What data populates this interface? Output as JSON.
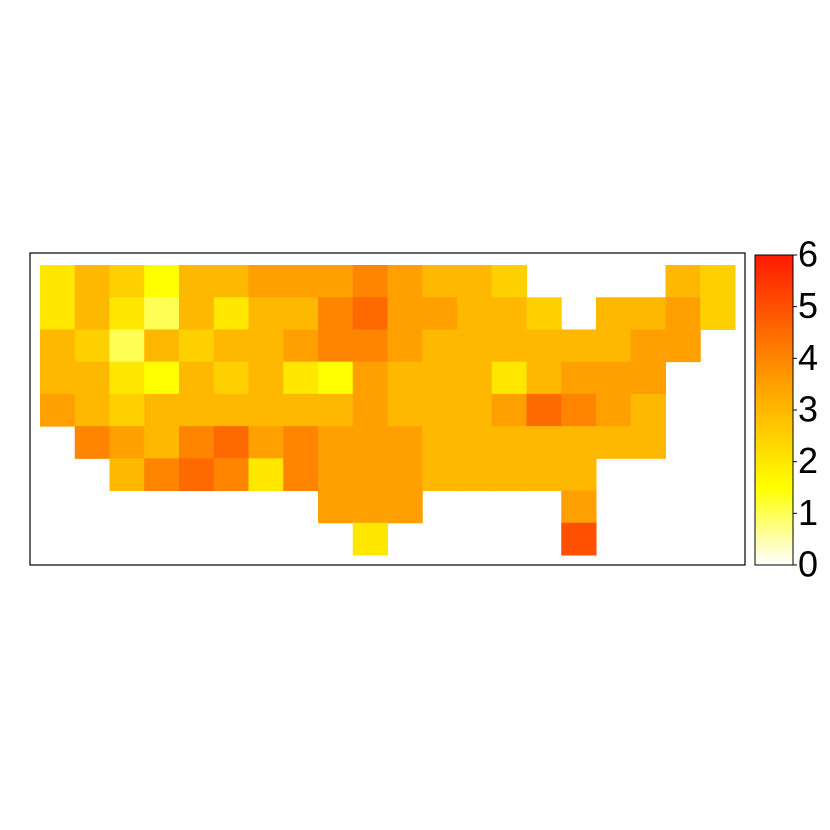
{
  "chart_data": {
    "type": "heatmap",
    "values": [
      [
        2,
        3,
        2.5,
        1.5,
        3,
        3,
        3.5,
        3.5,
        3.5,
        4,
        3.5,
        3,
        3,
        2.5,
        null,
        null,
        null,
        null,
        3,
        2.5
      ],
      [
        2,
        3,
        2,
        1,
        3,
        2,
        3,
        3,
        4,
        4.5,
        3.5,
        3.5,
        3,
        3,
        2.5,
        null,
        3,
        3,
        3.5,
        2.5
      ],
      [
        3,
        2.5,
        1,
        3,
        2.5,
        3,
        3,
        3.5,
        4,
        4,
        3.5,
        3,
        3,
        3,
        3,
        3,
        3,
        3.5,
        3.5,
        null
      ],
      [
        3,
        3,
        2,
        1.5,
        3,
        2.5,
        3,
        2,
        1.5,
        3.5,
        3,
        3,
        3,
        2,
        3,
        3.5,
        3.5,
        3.5,
        null,
        null
      ],
      [
        3.5,
        3,
        2.5,
        3,
        3,
        3,
        3,
        3,
        3,
        3.5,
        3,
        3,
        3,
        3.5,
        4.5,
        4,
        3.5,
        3,
        null,
        null
      ],
      [
        null,
        4,
        3.5,
        3,
        4,
        4.5,
        3.5,
        4,
        3.5,
        3.5,
        3.5,
        3,
        3,
        3,
        3,
        3,
        3,
        3,
        null,
        null
      ],
      [
        null,
        null,
        3,
        4,
        4.5,
        4,
        2,
        4,
        3.5,
        3.5,
        3.5,
        3,
        3,
        3,
        3,
        3,
        null,
        null,
        null,
        null
      ],
      [
        null,
        null,
        null,
        null,
        null,
        null,
        null,
        null,
        3.5,
        3.5,
        3.5,
        null,
        null,
        null,
        null,
        3.5,
        null,
        null,
        null,
        null
      ],
      [
        null,
        null,
        null,
        null,
        null,
        null,
        null,
        null,
        null,
        2,
        null,
        null,
        null,
        null,
        null,
        5,
        null,
        null,
        null,
        null
      ]
    ],
    "colormap": {
      "stops": [
        0,
        1.5,
        3.5,
        6
      ],
      "colors": [
        "#ffffff",
        "#ffff00",
        "#ffa000",
        "#ff1a00"
      ]
    },
    "clim": [
      0,
      6
    ],
    "cticks": [
      0,
      1,
      2,
      3,
      4,
      5,
      6
    ]
  }
}
